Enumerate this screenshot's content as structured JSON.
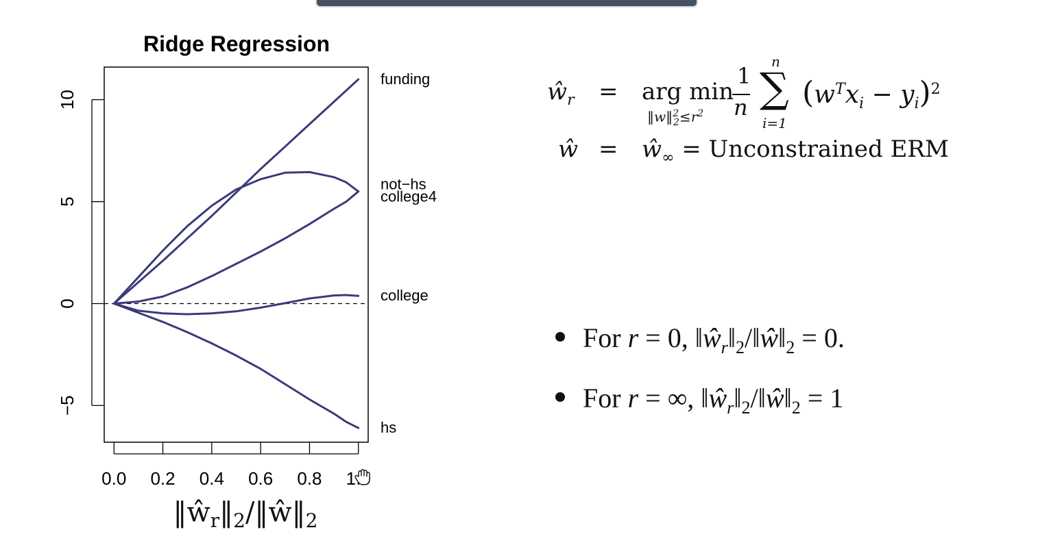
{
  "window": {
    "top_bar_color": "#46535e"
  },
  "chart_data": {
    "type": "line",
    "title": "Ridge Regression",
    "xlabel": "‖ŵr‖2/‖ŵ‖2",
    "ylabel": "",
    "xlim": [
      -0.04,
      1.04
    ],
    "ylim": [
      -6.8,
      11.6
    ],
    "xticks": [
      0.0,
      0.2,
      0.4,
      0.6,
      0.8,
      1.0
    ],
    "xtick_labels": [
      "0.0",
      "0.2",
      "0.4",
      "0.6",
      "0.8",
      "1.0"
    ],
    "yticks": [
      -5,
      0,
      5,
      10
    ],
    "ytick_labels": [
      "−5",
      "0",
      "5",
      "10"
    ],
    "reference_line": {
      "y": 0,
      "style": "dashed"
    },
    "line_color": "#3b3a7a",
    "series": [
      {
        "name": "funding",
        "x": [
          0,
          0.1,
          0.2,
          0.3,
          0.4,
          0.5,
          0.6,
          0.7,
          0.8,
          0.9,
          1.0
        ],
        "values": [
          0,
          1.05,
          2.1,
          3.2,
          4.3,
          5.45,
          6.6,
          7.7,
          8.8,
          9.9,
          11.0
        ]
      },
      {
        "name": "not−hs",
        "x": [
          0,
          0.1,
          0.2,
          0.3,
          0.4,
          0.5,
          0.6,
          0.7,
          0.8,
          0.9,
          0.95,
          1.0
        ],
        "values": [
          0,
          1.3,
          2.6,
          3.8,
          4.8,
          5.6,
          6.1,
          6.42,
          6.45,
          6.2,
          5.95,
          5.5
        ]
      },
      {
        "name": "college4",
        "x": [
          0,
          0.1,
          0.2,
          0.3,
          0.4,
          0.5,
          0.6,
          0.7,
          0.8,
          0.9,
          0.95,
          1.0
        ],
        "values": [
          0,
          0.1,
          0.35,
          0.8,
          1.35,
          1.95,
          2.55,
          3.2,
          3.9,
          4.65,
          5.0,
          5.5
        ]
      },
      {
        "name": "college",
        "x": [
          0,
          0.1,
          0.2,
          0.3,
          0.4,
          0.5,
          0.6,
          0.7,
          0.8,
          0.9,
          0.95,
          1.0
        ],
        "values": [
          0,
          -0.35,
          -0.48,
          -0.52,
          -0.48,
          -0.38,
          -0.2,
          0.02,
          0.25,
          0.4,
          0.42,
          0.38
        ]
      },
      {
        "name": "hs",
        "x": [
          0,
          0.1,
          0.2,
          0.3,
          0.4,
          0.5,
          0.6,
          0.7,
          0.8,
          0.9,
          0.95,
          1.0
        ],
        "values": [
          0,
          -0.45,
          -0.9,
          -1.4,
          -1.95,
          -2.55,
          -3.2,
          -3.95,
          -4.7,
          -5.4,
          -5.8,
          -6.1
        ]
      }
    ],
    "line_end_labels": [
      "funding",
      "not−hs",
      "college4",
      "college",
      "hs"
    ]
  },
  "equations": {
    "line1": {
      "lhs": "ŵr",
      "eq": "=",
      "argmin": "arg min",
      "constraint": "‖w‖²₂≤r²",
      "frac_num": "1",
      "frac_den": "n",
      "sum_top": "n",
      "sum": "∑",
      "sum_bottom": "i=1",
      "body": "(wTxi − yi)2"
    },
    "line2": {
      "lhs": "ŵ",
      "eq": "=",
      "rhs": "ŵ∞ = Unconstrained ERM"
    }
  },
  "bullets": [
    "For r = 0, ‖ŵr‖2/‖ŵ‖2 = 0.",
    "For r = ∞, ‖ŵr‖2/‖ŵ‖2 = 1"
  ],
  "cursor_icon": "grab-hand-icon"
}
